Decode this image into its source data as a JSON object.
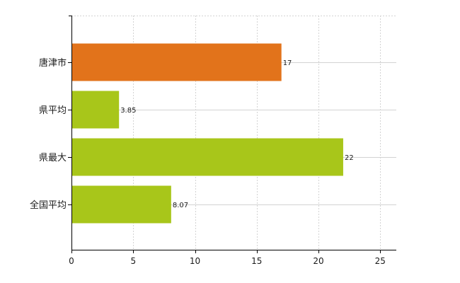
{
  "chart_data": {
    "type": "bar",
    "orientation": "horizontal",
    "categories": [
      "唐津市",
      "県平均",
      "県最大",
      "全国平均"
    ],
    "values": [
      17,
      3.85,
      22,
      8.07
    ],
    "data_labels": [
      "17",
      "3.85",
      "22",
      "8.07"
    ],
    "bar_colors": [
      "#e2731b",
      "#a8c61a",
      "#a8c61a",
      "#a8c61a"
    ],
    "xlim": [
      0,
      26.3
    ],
    "x_ticks": [
      0,
      5,
      10,
      15,
      20,
      25
    ],
    "x_tick_labels": [
      "0",
      "5",
      "10",
      "15",
      "20",
      "25"
    ],
    "grid": true,
    "legend": "none"
  }
}
